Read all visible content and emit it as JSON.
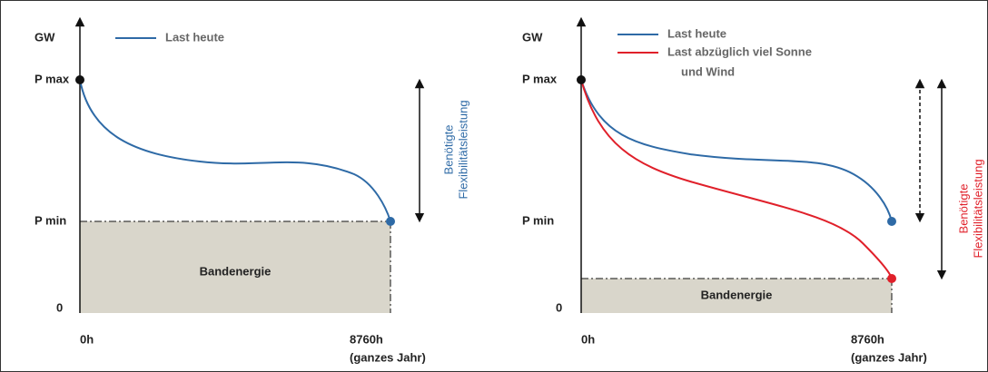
{
  "panels": [
    {
      "axis_label": "GW",
      "p_max": "P max",
      "p_min": "P min",
      "zero": "0",
      "x_start": "0h",
      "x_end": "8760h",
      "x_end_note": "(ganzes Jahr)",
      "legend": [
        "Last heute"
      ],
      "band_label": "Bandenergie",
      "flex_label": [
        "Benötigte",
        "Flexibilitätsleistung"
      ]
    },
    {
      "axis_label": "GW",
      "p_max": "P max",
      "p_min": "P min",
      "zero": "0",
      "x_start": "0h",
      "x_end": "8760h",
      "x_end_note": "(ganzes Jahr)",
      "legend": [
        "Last heute",
        "Last abzüglich viel Sonne",
        "und Wind"
      ],
      "band_label": "Bandenergie",
      "flex_label": [
        "Benötigte",
        "Flexibilitätsleistung"
      ]
    }
  ]
}
